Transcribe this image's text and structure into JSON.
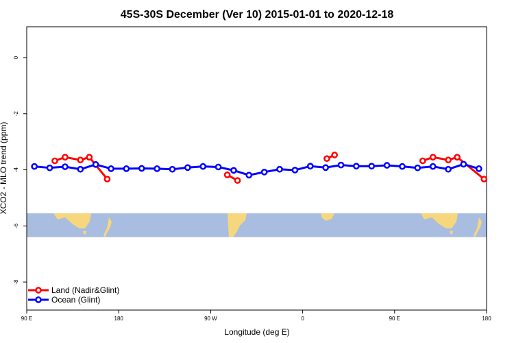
{
  "chart_data": {
    "type": "line",
    "title": "45S-30S December (Ver 10)   2015-01-01 to 2020-12-18",
    "xlabel": "Longitude (deg E)",
    "ylabel": "XCO2 - MLO trend (ppm)",
    "xlim": [
      90,
      450
    ],
    "ylim": [
      -9,
      1.1
    ],
    "x_ticks": [
      {
        "value": 90,
        "label": "90 E"
      },
      {
        "value": 162,
        "label": "180"
      },
      {
        "value": 234,
        "label": "90 W"
      },
      {
        "value": 306,
        "label": "0"
      },
      {
        "value": 378,
        "label": "90 E"
      },
      {
        "value": 450,
        "label": "180"
      }
    ],
    "y_ticks": [
      {
        "value": 0,
        "label": "0"
      },
      {
        "value": -2,
        "label": "-2"
      },
      {
        "value": -4,
        "label": "-4"
      },
      {
        "value": -6,
        "label": "-6"
      },
      {
        "value": -8,
        "label": "-8"
      }
    ],
    "series": [
      {
        "name": "Land (Nadir&Glint)",
        "color": "#ff0000",
        "segments": [
          {
            "x": [
              112,
              120,
              132,
              139,
              153
            ],
            "y": [
              -3.68,
              -3.55,
              -3.65,
              -3.55,
              -4.33
            ]
          },
          {
            "x": [
              247,
              255
            ],
            "y": [
              -4.18,
              -4.38
            ]
          },
          {
            "x": [
              325,
              331
            ],
            "y": [
              -3.6,
              -3.47
            ]
          },
          {
            "x": [
              400,
              408,
              420,
              427,
              448
            ],
            "y": [
              -3.68,
              -3.55,
              -3.65,
              -3.55,
              -4.33
            ]
          }
        ]
      },
      {
        "name": "Ocean (Glint)",
        "color": "#0000ff",
        "segments": [
          {
            "x": [
              96,
              108,
              120,
              132,
              144,
              156,
              168,
              180,
              192,
              204,
              216,
              228,
              240,
              252,
              264,
              276,
              288,
              300,
              312,
              324,
              336,
              348,
              360,
              372,
              384,
              396,
              408,
              420,
              432,
              444
            ],
            "y": [
              -3.88,
              -3.93,
              -3.89,
              -3.98,
              -3.81,
              -3.96,
              -3.96,
              -3.95,
              -3.96,
              -3.98,
              -3.92,
              -3.88,
              -3.9,
              -4.02,
              -4.19,
              -4.08,
              -3.98,
              -4.01,
              -3.87,
              -3.92,
              -3.83,
              -3.87,
              -3.87,
              -3.84,
              -3.88,
              -3.93,
              -3.88,
              -3.98,
              -3.8,
              -3.96
            ]
          }
        ]
      }
    ],
    "background_band": {
      "y_range": [
        -6.4,
        -5.55
      ],
      "ocean_color": "#a8bde0",
      "land_color": "#f7d77e"
    },
    "grid": false,
    "legend_position": "bottom-left"
  }
}
